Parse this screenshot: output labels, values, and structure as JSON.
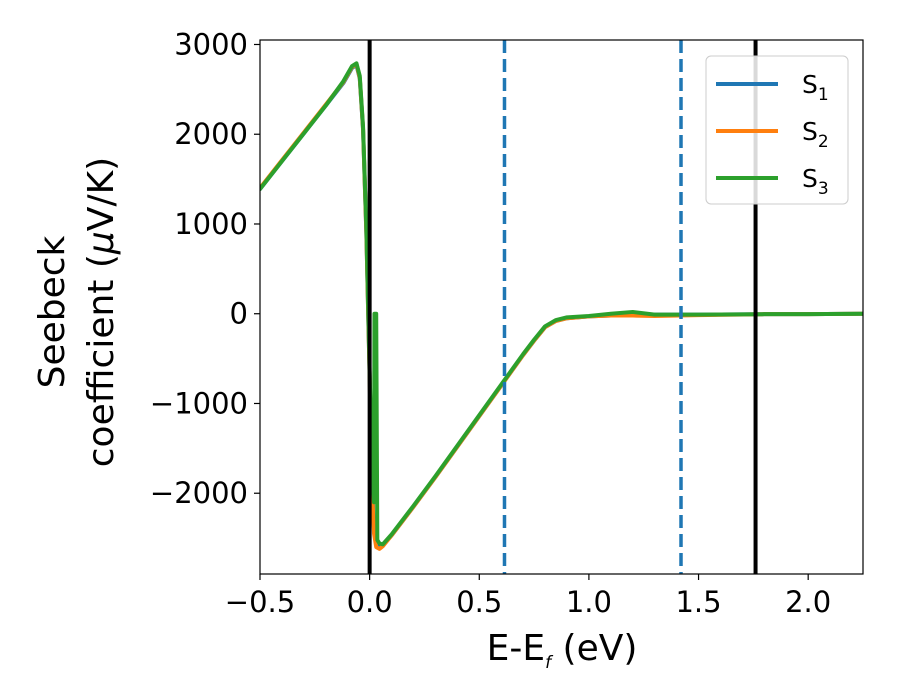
{
  "chart_data": {
    "type": "line",
    "xlabel": {
      "main": "E-E",
      "sub": "f",
      "unit": " (eV)"
    },
    "ylabel": {
      "line1": "Seebeck",
      "line2": "coefficient  (",
      "mu": "μ",
      "unit": "V/K)"
    },
    "xlim": [
      -0.5,
      2.25
    ],
    "ylim": [
      -2900,
      3050
    ],
    "xticks": [
      -0.5,
      0.0,
      0.5,
      1.0,
      1.5,
      2.0
    ],
    "xtick_labels": [
      "−0.5",
      "0.0",
      "0.5",
      "1.0",
      "1.5",
      "2.0"
    ],
    "yticks": [
      -2000,
      -1000,
      0,
      1000,
      2000,
      3000
    ],
    "ytick_labels": [
      "−2000",
      "−1000",
      "0",
      "1000",
      "2000",
      "3000"
    ],
    "grid": false,
    "legend_position": "top-right",
    "vlines": [
      {
        "x": 0.0,
        "style": "solid",
        "color": "#000000"
      },
      {
        "x": 0.615,
        "style": "dashed",
        "color": "#1f77b4"
      },
      {
        "x": 1.42,
        "style": "dashed",
        "color": "#1f77b4"
      },
      {
        "x": 1.76,
        "style": "solid",
        "color": "#000000"
      }
    ],
    "series": [
      {
        "name": "S",
        "sub": "1",
        "color": "#1f77b4",
        "x": [
          -0.5,
          -0.4,
          -0.3,
          -0.2,
          -0.12,
          -0.08,
          -0.06,
          -0.045,
          -0.03,
          -0.015,
          0.0,
          0.01,
          0.02,
          0.03,
          0.045,
          0.06,
          0.1,
          0.2,
          0.3,
          0.4,
          0.5,
          0.6,
          0.7,
          0.75,
          0.8,
          0.85,
          0.9,
          1.0,
          1.1,
          1.2,
          1.3,
          1.5,
          1.8,
          2.0,
          2.25
        ],
        "y": [
          1390,
          1700,
          2010,
          2320,
          2570,
          2740,
          2770,
          2620,
          2050,
          900,
          -700,
          -1850,
          -2400,
          -2560,
          -2600,
          -2580,
          -2470,
          -2150,
          -1820,
          -1480,
          -1140,
          -800,
          -460,
          -300,
          -150,
          -80,
          -50,
          -30,
          -20,
          -15,
          -10,
          -10,
          -5,
          -5,
          0
        ]
      },
      {
        "name": "S",
        "sub": "2",
        "color": "#ff7f0e",
        "x": [
          -0.5,
          -0.4,
          -0.3,
          -0.2,
          -0.12,
          -0.08,
          -0.06,
          -0.045,
          -0.03,
          -0.015,
          0.0,
          0.01,
          0.02,
          0.03,
          0.045,
          0.06,
          0.1,
          0.2,
          0.3,
          0.4,
          0.5,
          0.6,
          0.7,
          0.75,
          0.8,
          0.85,
          0.9,
          1.0,
          1.1,
          1.2,
          1.3,
          1.5,
          1.8,
          2.0,
          2.25
        ],
        "y": [
          1400,
          1710,
          2020,
          2330,
          2580,
          2750,
          2780,
          2630,
          2060,
          900,
          -700,
          -1900,
          -2450,
          -2600,
          -2620,
          -2590,
          -2470,
          -2150,
          -1820,
          -1480,
          -1140,
          -800,
          -460,
          -300,
          -150,
          -80,
          -50,
          -30,
          -20,
          -20,
          -25,
          -15,
          -5,
          -5,
          0
        ]
      },
      {
        "name": "S",
        "sub": "3",
        "color": "#2ca02c",
        "x": [
          -0.5,
          -0.4,
          -0.3,
          -0.2,
          -0.12,
          -0.08,
          -0.06,
          -0.045,
          -0.03,
          -0.015,
          0.0,
          0.01,
          0.02,
          0.022,
          0.025,
          0.03,
          0.035,
          0.045,
          0.06,
          0.1,
          0.2,
          0.3,
          0.4,
          0.5,
          0.6,
          0.7,
          0.75,
          0.8,
          0.85,
          0.9,
          1.0,
          1.1,
          1.2,
          1.3,
          1.5,
          1.8,
          2.0,
          2.25
        ],
        "y": [
          1390,
          1700,
          2010,
          2320,
          2590,
          2760,
          2790,
          2650,
          2080,
          950,
          -650,
          -1700,
          -2100,
          0,
          0,
          0,
          -2520,
          -2560,
          -2570,
          -2460,
          -2140,
          -1810,
          -1470,
          -1130,
          -790,
          -450,
          -290,
          -140,
          -70,
          -40,
          -25,
          0,
          20,
          -10,
          -10,
          -5,
          -5,
          0
        ]
      }
    ]
  }
}
